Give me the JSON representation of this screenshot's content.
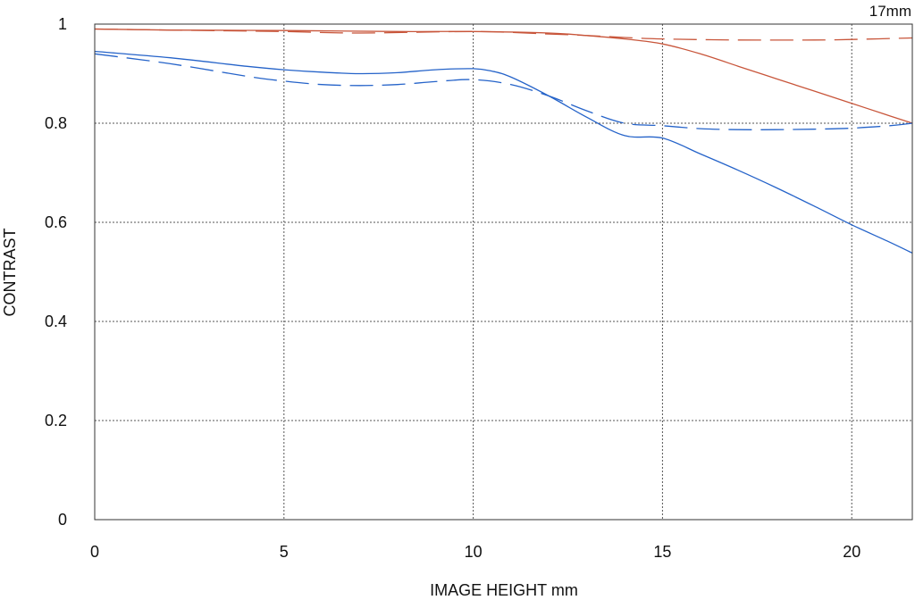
{
  "chart_data": {
    "type": "line",
    "title": "17mm",
    "xlabel": "IMAGE HEIGHT  mm",
    "ylabel": "CONTRAST",
    "xlim": [
      0,
      21.6
    ],
    "ylim": [
      0,
      1
    ],
    "x_ticks": [
      0,
      5,
      10,
      15,
      20
    ],
    "y_ticks": [
      0,
      0.2,
      0.4,
      0.6,
      0.8,
      1
    ],
    "y_tick_labels": [
      "0",
      "0.2",
      "0.4",
      "0.6",
      "0.8",
      "1"
    ],
    "grid": true,
    "series": [
      {
        "color": "#c8553a",
        "dash": "solid",
        "x": [
          0,
          2,
          5,
          8,
          10,
          12,
          13,
          14,
          15,
          16,
          17,
          18,
          19,
          20,
          21,
          21.6
        ],
        "y": [
          0.99,
          0.988,
          0.987,
          0.985,
          0.985,
          0.982,
          0.977,
          0.97,
          0.96,
          0.94,
          0.915,
          0.89,
          0.865,
          0.84,
          0.815,
          0.8
        ]
      },
      {
        "color": "#c8553a",
        "dash": "dashed",
        "x": [
          0,
          3,
          5,
          7,
          10,
          12,
          13,
          14,
          15,
          17,
          19,
          20,
          21.6
        ],
        "y": [
          0.99,
          0.987,
          0.985,
          0.982,
          0.985,
          0.98,
          0.977,
          0.973,
          0.97,
          0.968,
          0.968,
          0.969,
          0.972
        ]
      },
      {
        "color": "#2563c9",
        "dash": "solid",
        "x": [
          0,
          2,
          4,
          5,
          6,
          7,
          8,
          9,
          10,
          10.5,
          11,
          12,
          13,
          14,
          15,
          16,
          17,
          18,
          19,
          20,
          21,
          21.6
        ],
        "y": [
          0.945,
          0.932,
          0.915,
          0.908,
          0.903,
          0.9,
          0.902,
          0.908,
          0.91,
          0.905,
          0.893,
          0.855,
          0.812,
          0.775,
          0.77,
          0.738,
          0.705,
          0.67,
          0.633,
          0.595,
          0.56,
          0.538
        ]
      },
      {
        "color": "#2563c9",
        "dash": "dashed",
        "x": [
          0,
          2,
          4,
          5,
          6,
          7,
          8,
          9,
          10,
          11,
          12,
          13,
          14,
          15,
          16,
          17,
          18,
          19,
          20,
          21,
          21.6
        ],
        "y": [
          0.94,
          0.92,
          0.895,
          0.885,
          0.878,
          0.876,
          0.878,
          0.884,
          0.888,
          0.878,
          0.855,
          0.825,
          0.8,
          0.795,
          0.789,
          0.787,
          0.787,
          0.788,
          0.79,
          0.795,
          0.8
        ]
      }
    ]
  }
}
